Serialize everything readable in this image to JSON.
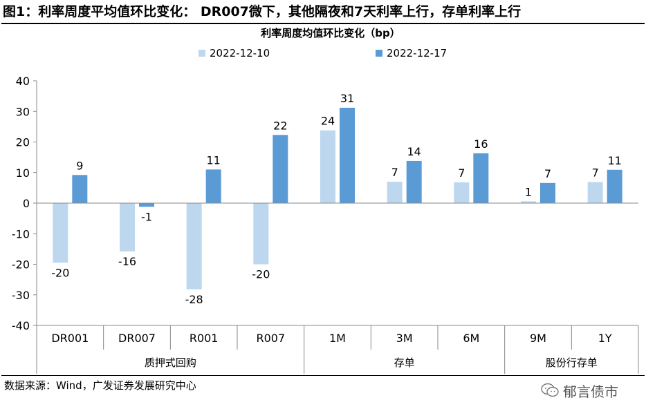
{
  "figure": {
    "title": "图1：利率周度平均值环比变化：  DR007微下，其他隔夜和7天利率上行，存单利率上行",
    "source": "数据来源：Wind，广发证券发展研究中心",
    "watermark": "郁言债市"
  },
  "chart_data": {
    "type": "bar",
    "title": "利率周度均值环比变化（bp）",
    "xlabel": "",
    "ylabel": "",
    "ylim": [
      -40,
      40
    ],
    "yticks": [
      -40,
      -30,
      -20,
      -10,
      0,
      10,
      20,
      30,
      40
    ],
    "grid": false,
    "legend_position": "top",
    "categories": [
      "DR001",
      "DR007",
      "R001",
      "R007",
      "1M",
      "3M",
      "6M",
      "9M",
      "1Y"
    ],
    "groups": [
      {
        "label": "质押式回购",
        "categories": [
          "DR001",
          "DR007",
          "R001",
          "R007"
        ]
      },
      {
        "label": "存单",
        "categories": [
          "1M",
          "3M",
          "6M"
        ]
      },
      {
        "label": "股份行存单",
        "categories": [
          "9M",
          "1Y"
        ]
      }
    ],
    "series": [
      {
        "name": "2022-12-10",
        "color": "#bdd7ee",
        "values": [
          -19.5,
          -15.8,
          -28.2,
          -20.0,
          23.8,
          7.0,
          6.8,
          0.6,
          6.9
        ],
        "labels": [
          "-20",
          "-16",
          "-28",
          "-20",
          "24",
          "7",
          "7",
          "1",
          "7"
        ]
      },
      {
        "name": "2022-12-17",
        "color": "#5b9bd5",
        "values": [
          9.2,
          -1.2,
          11.0,
          22.3,
          31.2,
          13.8,
          16.3,
          6.6,
          10.9
        ],
        "labels": [
          "9",
          "-1",
          "11",
          "22",
          "31",
          "14",
          "16",
          "7",
          "11"
        ]
      }
    ]
  }
}
